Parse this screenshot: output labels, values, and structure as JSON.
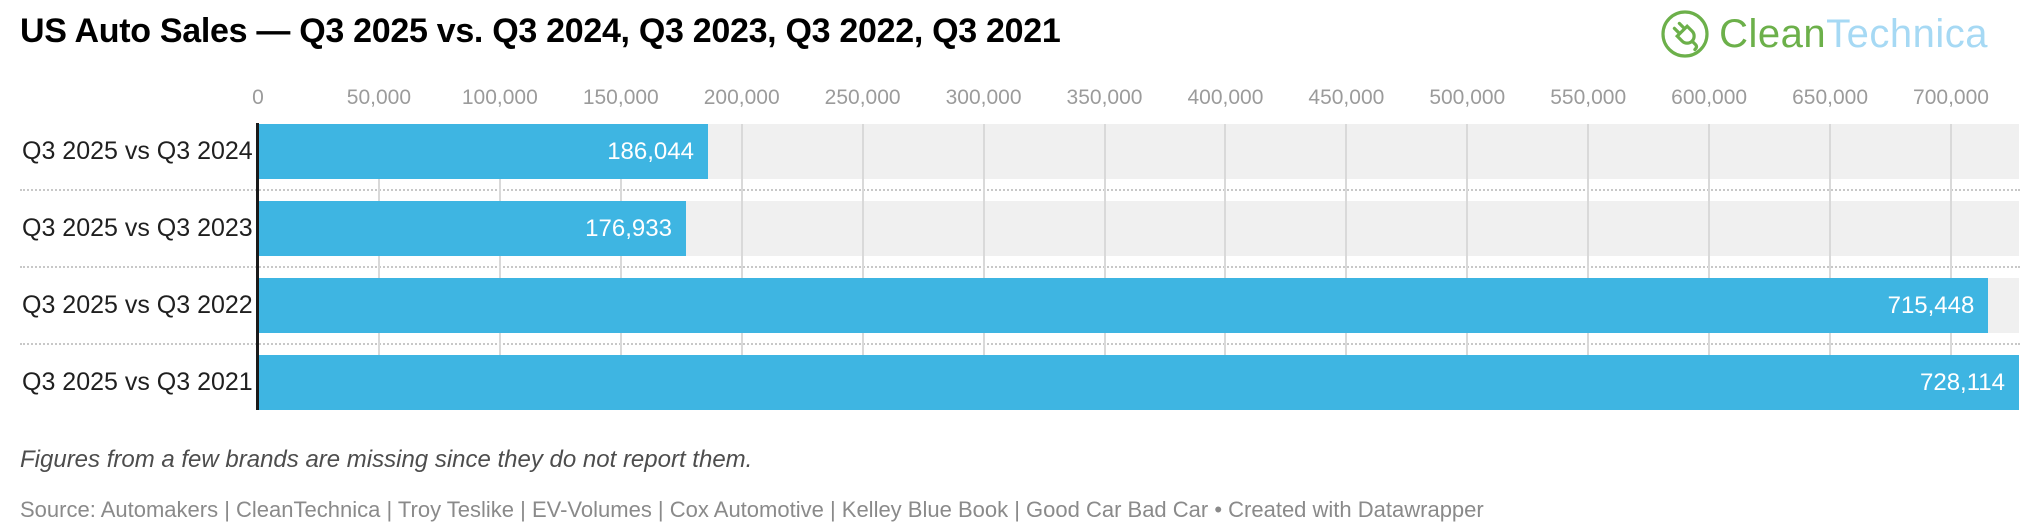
{
  "title": "US Auto Sales — Q3 2025 vs. Q3 2024, Q3 2023, Q3 2022, Q3 2021",
  "logo": {
    "part1": "Clean",
    "part2": "Technica",
    "part1_color": "#6cb04a",
    "part2_color": "#a6d9f4",
    "icon": "cleantechnica-plug-icon",
    "icon_color": "#6cb04a"
  },
  "chart_data": {
    "type": "bar",
    "orientation": "horizontal",
    "title": "US Auto Sales — Q3 2025 vs. Q3 2024, Q3 2023, Q3 2022, Q3 2021",
    "categories": [
      "Q3 2025 vs Q3 2024",
      "Q3 2025 vs Q3 2023",
      "Q3 2025 vs Q3 2022",
      "Q3 2025 vs Q3 2021"
    ],
    "values": [
      186044,
      176933,
      715448,
      728114
    ],
    "value_labels": [
      "186,044",
      "176,933",
      "715,448",
      "728,114"
    ],
    "axis_ticks": [
      0,
      50000,
      100000,
      150000,
      200000,
      250000,
      300000,
      350000,
      400000,
      450000,
      500000,
      550000,
      600000,
      650000,
      700000
    ],
    "axis_tick_labels": [
      "0",
      "50,000",
      "100,000",
      "150,000",
      "200,000",
      "250,000",
      "300,000",
      "350,000",
      "400,000",
      "450,000",
      "500,000",
      "550,000",
      "600,000",
      "650,000",
      "700,000"
    ],
    "xlim": [
      0,
      728114
    ],
    "grid": true,
    "legend": "none",
    "bar_color": "#3eb5e2",
    "track_color": "#f0f0f0",
    "gridline_color": "#d9d9d9",
    "axis_line_color": "#1a1a1a",
    "value_label_color": "#ffffff"
  },
  "note": "Figures from a few brands are missing since they do not report them.",
  "source": "Source: Automakers | CleanTechnica | Troy Teslike | EV-Volumes | Cox Automotive | Kelley Blue Book | Good Car Bad Car • Created with Datawrapper"
}
